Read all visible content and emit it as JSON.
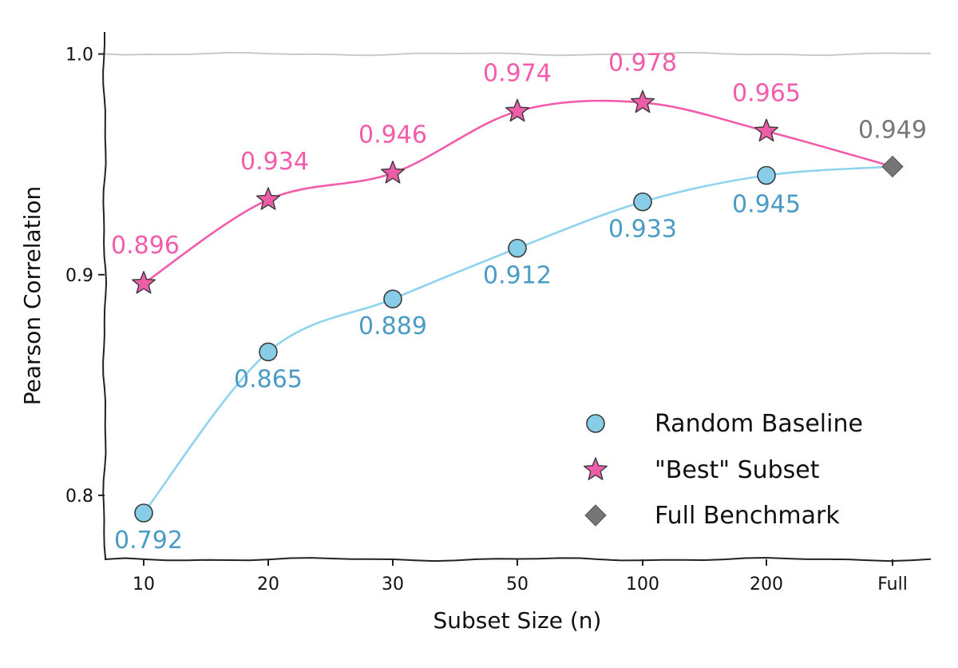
{
  "chart_data": {
    "type": "line",
    "categories": [
      "10",
      "20",
      "30",
      "50",
      "100",
      "200",
      "Full"
    ],
    "xlabel": "Subset Size (n)",
    "ylabel": "Pearson Correlation",
    "ylim": [
      0.771,
      1.01
    ],
    "yticks": [
      0.8,
      0.9,
      1.0
    ],
    "ytick_labels": [
      "0.8",
      "0.9",
      "1.0"
    ],
    "grid": "horizontal line at 1.0 only",
    "legend_position": "lower-right",
    "series": [
      {
        "name": "Random Baseline",
        "marker": "circle",
        "color": "#87cde8",
        "line_color": "#8fd3ef",
        "label_color": "#4a9cc6",
        "values": [
          0.792,
          0.865,
          0.889,
          0.912,
          0.933,
          0.945,
          0.949
        ],
        "labels": [
          "0.792",
          "0.865",
          "0.889",
          "0.912",
          "0.933",
          "0.945",
          ""
        ]
      },
      {
        "name": "\"Best\" Subset",
        "marker": "star",
        "color": "#ee5ea8",
        "line_color": "#f25caa",
        "label_color": "#f25caa",
        "values": [
          0.896,
          0.934,
          0.946,
          0.974,
          0.978,
          0.965,
          0.949
        ],
        "labels": [
          "0.896",
          "0.934",
          "0.946",
          "0.974",
          "0.978",
          "0.965",
          ""
        ]
      },
      {
        "name": "Full Benchmark",
        "marker": "diamond",
        "color": "#757575",
        "label_color": "#777777",
        "point_category": "Full",
        "value": 0.949,
        "label": "0.949"
      }
    ]
  }
}
